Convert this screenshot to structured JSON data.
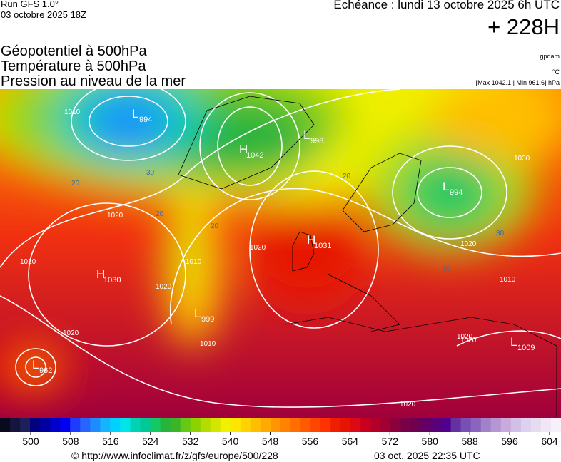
{
  "header": {
    "run": "Run GFS 1.0°",
    "run_date": "03 octobre 2025 18Z",
    "valid": "Echéance : lundi 13 octobre 2025 6h UTC",
    "lead": "+ 228H",
    "fields": [
      "Géopotentiel à 500hPa",
      "Température à 500hPa",
      "Pression au niveau de la mer"
    ],
    "units": [
      "gpdam",
      "°C",
      "[Max 1042.1 | Min 961.6] hPa"
    ]
  },
  "systems": [
    {
      "letter": "L",
      "value": "994"
    },
    {
      "letter": "H",
      "value": "1042"
    },
    {
      "letter": "L",
      "value": "998"
    },
    {
      "letter": "L",
      "value": "994"
    },
    {
      "letter": "H",
      "value": "1031"
    },
    {
      "letter": "H",
      "value": "1030"
    },
    {
      "letter": "L",
      "value": "999"
    },
    {
      "letter": "L",
      "value": "962"
    },
    {
      "letter": "L",
      "value": "1009"
    }
  ],
  "contour_labels": [
    "1010",
    "1020",
    "1020",
    "1020",
    "1010",
    "1020",
    "1020",
    "1010",
    "1020",
    "1020",
    "1020",
    "1010",
    "1020",
    "1030",
    "20",
    "20",
    "20",
    "30",
    "20",
    "30",
    "20"
  ],
  "colorbar": {
    "ticks": [
      500,
      508,
      516,
      524,
      532,
      540,
      548,
      556,
      564,
      572,
      580,
      588,
      596,
      604
    ],
    "colors": [
      "#0a0a1e",
      "#14143c",
      "#1e1e5a",
      "#000080",
      "#0000a0",
      "#0000c8",
      "#0000f0",
      "#1e3cff",
      "#2864ff",
      "#1e8cff",
      "#14b4ff",
      "#00d2ff",
      "#00e6e6",
      "#00d2b4",
      "#00c896",
      "#14c864",
      "#28b43c",
      "#3cb428",
      "#64c814",
      "#8cd200",
      "#b4dc00",
      "#d2e600",
      "#f0f000",
      "#ffe600",
      "#ffd200",
      "#ffbe00",
      "#ffaa00",
      "#ff9600",
      "#ff8200",
      "#ff6e00",
      "#ff5a00",
      "#ff4600",
      "#ff3200",
      "#f01e00",
      "#e61400",
      "#dc0a14",
      "#c8001e",
      "#b40028",
      "#a00032",
      "#8c003c",
      "#780046",
      "#6e0050",
      "#640064",
      "#5a0078",
      "#50008c",
      "#6432a0",
      "#7850b4",
      "#8c64be",
      "#a082c8",
      "#b496d2",
      "#c8aadc",
      "#d2bee6",
      "#dcd2f0",
      "#e6dcf0",
      "#f0e6f5",
      "#f5f0fa"
    ]
  },
  "footer": {
    "url": "© http://www.infoclimat.fr/z/gfs/europe/500/228",
    "generated": "03 oct. 2025 22:35 UTC"
  }
}
